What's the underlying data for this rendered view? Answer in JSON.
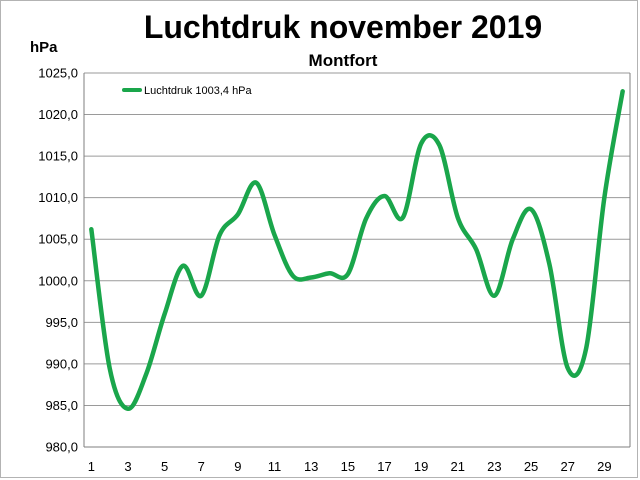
{
  "chart_data": {
    "type": "line",
    "title": "Luchtdruk november 2019",
    "subtitle": "Montfort",
    "ylabel": "hPa",
    "xlabel": "",
    "ylim": [
      980,
      1025
    ],
    "y_ticks": [
      "980,0",
      "985,0",
      "990,0",
      "995,0",
      "1000,0",
      "1005,0",
      "1010,0",
      "1015,0",
      "1020,0",
      "1025,0"
    ],
    "x_ticks": [
      "1",
      "3",
      "5",
      "7",
      "9",
      "11",
      "13",
      "15",
      "17",
      "19",
      "21",
      "23",
      "25",
      "27",
      "29"
    ],
    "grid": "horizontal",
    "legend_position": "top-left",
    "series": [
      {
        "name": "Luchtdruk 1003,4 hPa",
        "color": "#1aa64b",
        "x": [
          1,
          2,
          3,
          4,
          5,
          6,
          7,
          8,
          9,
          10,
          11,
          12,
          13,
          14,
          15,
          16,
          17,
          18,
          19,
          20,
          21,
          22,
          23,
          24,
          25,
          26,
          27,
          28,
          29,
          30
        ],
        "values": [
          1006.2,
          989.5,
          984.6,
          988.8,
          996.0,
          1001.8,
          998.2,
          1005.5,
          1008.0,
          1011.8,
          1005.5,
          1000.6,
          1000.4,
          1000.9,
          1000.8,
          1007.5,
          1010.2,
          1007.6,
          1016.5,
          1016.3,
          1007.6,
          1003.8,
          998.2,
          1005.0,
          1008.6,
          1002.0,
          989.5,
          991.8,
          1010.0,
          1022.8
        ]
      }
    ]
  }
}
